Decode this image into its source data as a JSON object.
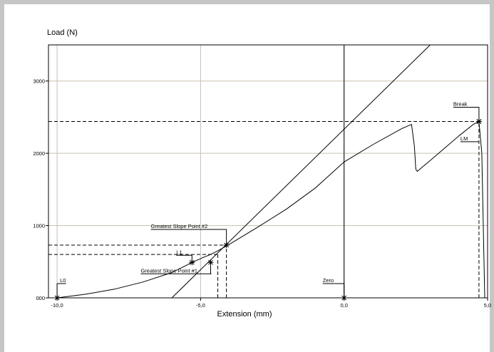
{
  "chart_data": {
    "type": "line",
    "title": "",
    "ylabel": "Load (N)",
    "xlabel": "Extension (mm)",
    "xlim": [
      -10.3,
      5.0
    ],
    "ylim": [
      0,
      3500
    ],
    "x_ticks": [
      {
        "value": -10.0,
        "label": "-10,0"
      },
      {
        "value": -5.0,
        "label": "-5,0"
      },
      {
        "value": 0.0,
        "label": "0,0"
      },
      {
        "value": 5.0,
        "label": "5,0"
      }
    ],
    "y_ticks": [
      {
        "value": 0,
        "label": "000"
      },
      {
        "value": 1000,
        "label": "1000"
      },
      {
        "value": 2000,
        "label": "2000"
      },
      {
        "value": 3000,
        "label": "3000"
      }
    ],
    "grid": true,
    "series": [
      {
        "role": "load-extension-curve",
        "color": "#000000",
        "x": [
          -10.0,
          -9.0,
          -8.0,
          -7.0,
          -6.0,
          -5.3,
          -4.9,
          -4.65,
          -4.4,
          -4.0,
          -3.0,
          -2.0,
          -1.0,
          0.0,
          1.0,
          2.0,
          2.35,
          2.45,
          2.5,
          2.55,
          2.7,
          3.0,
          3.5,
          4.0,
          4.5,
          4.7,
          4.8,
          4.9
        ],
        "y": [
          0,
          50,
          120,
          220,
          350,
          490,
          560,
          600,
          650,
          740,
          980,
          1230,
          1520,
          1880,
          2120,
          2340,
          2400,
          2100,
          1780,
          1750,
          1800,
          1900,
          2070,
          2240,
          2400,
          2440,
          2000,
          0
        ]
      },
      {
        "role": "greatest-slope-line",
        "color": "#000000",
        "x": [
          -6.0,
          3.0
        ],
        "y": [
          0,
          3500
        ]
      }
    ],
    "reference_lines": [
      {
        "axis": "y",
        "value": 2440,
        "style": "dashed",
        "x_range": [
          -10.3,
          4.7
        ]
      },
      {
        "axis": "y",
        "value": 730,
        "style": "dashed",
        "x_range": [
          -10.3,
          -4.1
        ]
      },
      {
        "axis": "y",
        "value": 600,
        "style": "dashed",
        "x_range": [
          -10.3,
          -4.4
        ]
      },
      {
        "axis": "x",
        "value": -4.1,
        "style": "dashed",
        "y_range": [
          0,
          730
        ]
      },
      {
        "axis": "x",
        "value": -4.4,
        "style": "dashed",
        "y_range": [
          0,
          600
        ]
      },
      {
        "axis": "x",
        "value": 4.7,
        "style": "dashed",
        "y_range": [
          0,
          2440
        ]
      },
      {
        "axis": "x",
        "value": 0.0,
        "style": "solid",
        "y_range": [
          0,
          3500
        ]
      }
    ],
    "markers": [
      {
        "name": "L0",
        "x": -10.0,
        "y": 0
      },
      {
        "name": "L1",
        "x": -5.3,
        "y": 490
      },
      {
        "name": "Greatest Slope Point #1",
        "x": -4.65,
        "y": 490
      },
      {
        "name": "Greatest Slope Point #2",
        "x": -4.1,
        "y": 730
      },
      {
        "name": "Zero",
        "x": 0.0,
        "y": 0
      },
      {
        "name": "Break",
        "x": 4.7,
        "y": 2440
      },
      {
        "name": "LM",
        "x": 4.7,
        "y": 2440
      }
    ],
    "annotations": [
      {
        "text": "L0",
        "x": -10.0,
        "y": 0
      },
      {
        "text": "L1",
        "x": -5.3,
        "y": 490
      },
      {
        "text": "Greatest Slope Point #1",
        "x": -4.65,
        "y": 490
      },
      {
        "text": "Greatest Slope Point #2",
        "x": -4.1,
        "y": 730
      },
      {
        "text": "Zero",
        "x": 0.0,
        "y": 0
      },
      {
        "text": "Break",
        "x": 4.7,
        "y": 2440
      },
      {
        "text": "LM",
        "x": 4.7,
        "y": 2160
      }
    ]
  }
}
